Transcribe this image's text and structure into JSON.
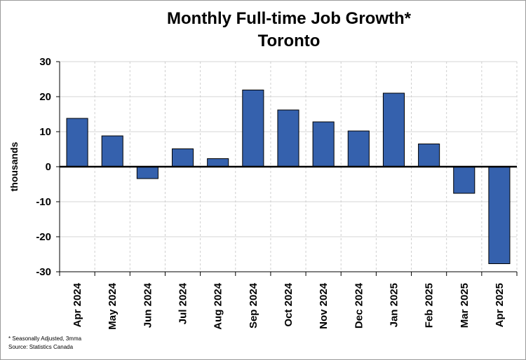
{
  "chart_data": {
    "type": "bar",
    "title": [
      "Monthly Full-time Job Growth*",
      "Toronto"
    ],
    "ylabel": "thousands",
    "xlabel": "",
    "ylim": [
      -30,
      30
    ],
    "yticks": [
      30,
      20,
      10,
      0,
      -10,
      -20,
      -30
    ],
    "ytick_labels": [
      "30",
      "20",
      "10",
      "0",
      "-10",
      "-20",
      "-30"
    ],
    "categories": [
      "Apr 2024",
      "May 2024",
      "Jun 2024",
      "Jul 2024",
      "Aug 2024",
      "Sep 2024",
      "Oct 2024",
      "Nov 2024",
      "Dec 2024",
      "Jan 2025",
      "Feb 2025",
      "Mar 2025",
      "Apr 2025"
    ],
    "values": [
      13.8,
      8.8,
      -3.4,
      5.1,
      2.3,
      21.9,
      16.2,
      12.8,
      10.2,
      21.0,
      6.5,
      -7.6,
      -27.7
    ],
    "bar_color": "#3561ad",
    "grid": true,
    "footnotes": [
      "* Seasonally Adjusted, 3mma",
      "Source: Statistics Canada"
    ]
  }
}
